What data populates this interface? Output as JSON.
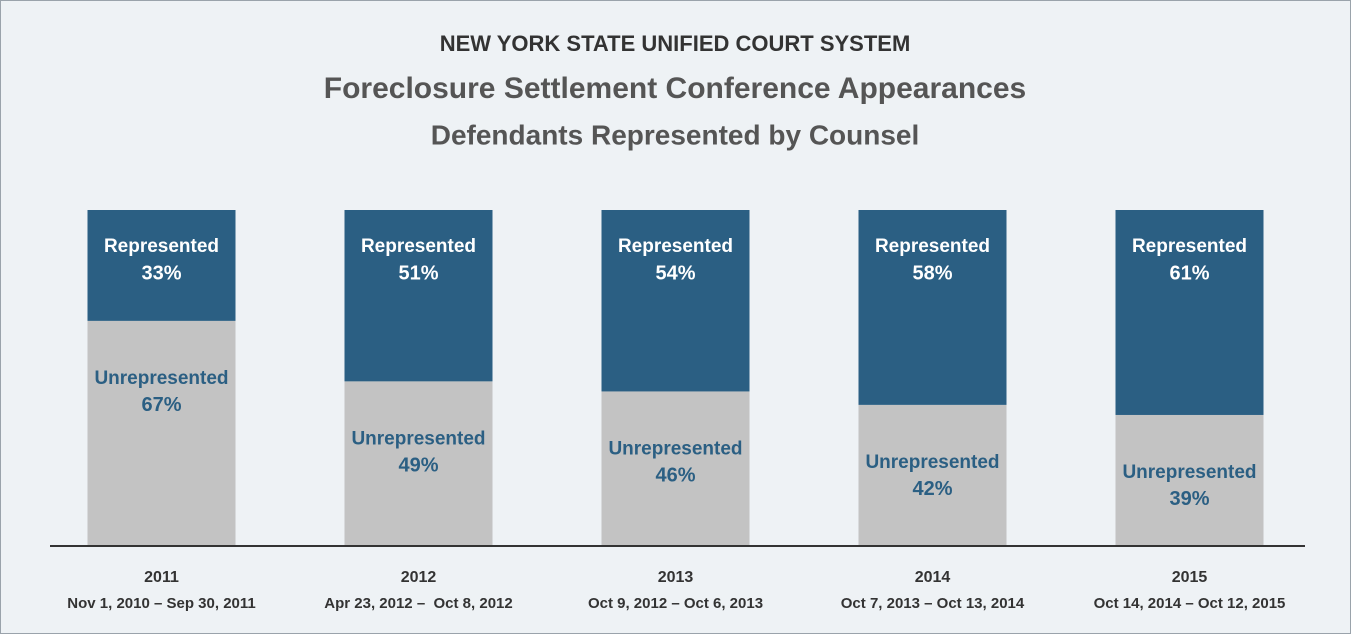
{
  "chart_data": {
    "type": "stacked_bar",
    "title": "NEW YORK STATE UNIFIED COURT SYSTEM",
    "subtitle": "Foreclosure Settlement Conference Appearances",
    "subtitle2": "Defendants Represented by Counsel",
    "categories": [
      "2011",
      "2012",
      "2013",
      "2014",
      "2015"
    ],
    "category_details": [
      "Nov 1, 2010 – Sep 30, 2011",
      "Apr 23, 2012 –  Oct 8, 2012",
      "Oct 9, 2012 – Oct 6, 2013",
      "Oct 7, 2013 – Oct 13, 2014",
      "Oct 14, 2014 – Oct 12, 2015"
    ],
    "ylim": [
      0,
      100
    ],
    "series": [
      {
        "name": "Unrepresented",
        "color": "#c3c3c3",
        "label_color": "#2b5f83",
        "values": [
          67,
          49,
          46,
          42,
          39
        ],
        "value_labels": [
          "67%",
          "49%",
          "46%",
          "42%",
          "39%"
        ]
      },
      {
        "name": "Represented",
        "color": "#2b5f83",
        "label_color": "#ffffff",
        "values": [
          33,
          51,
          54,
          58,
          61
        ],
        "value_labels": [
          "33%",
          "51%",
          "54%",
          "58%",
          "61%"
        ]
      }
    ]
  }
}
